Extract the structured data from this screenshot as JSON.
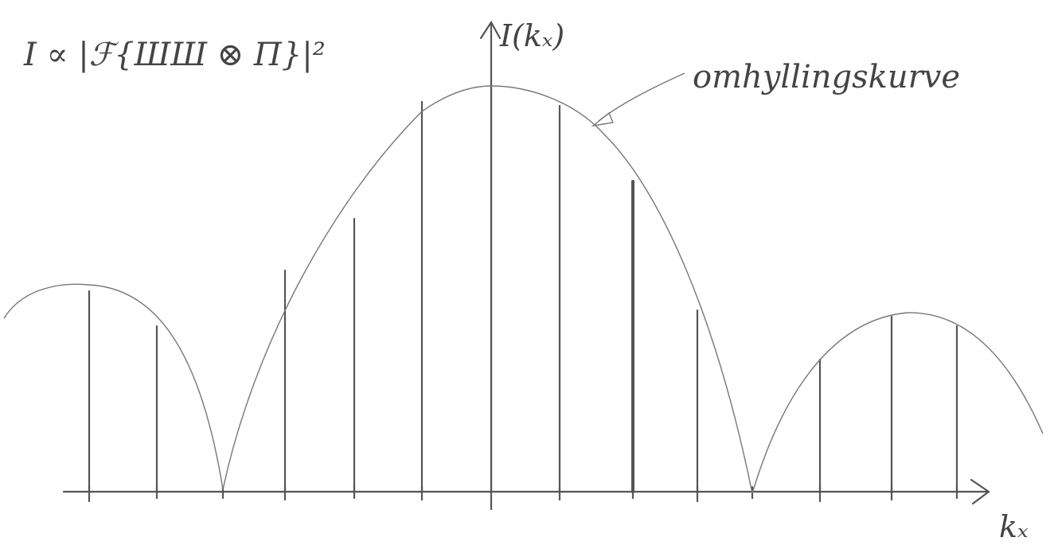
{
  "formula": "I ∝ |ℱ{ШШ ⊗ Π}|²",
  "y_axis_label": "I(kₓ)",
  "annotation": "omhyllingskurve",
  "x_axis_label": "kₓ"
}
